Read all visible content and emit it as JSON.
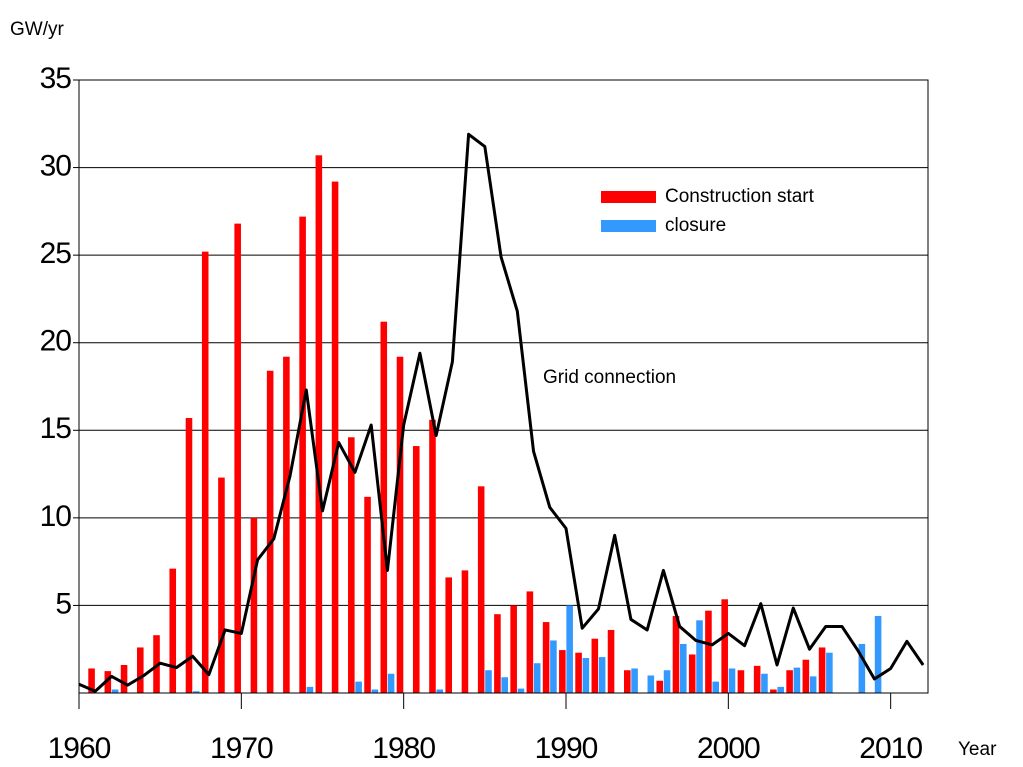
{
  "chart_data": {
    "type": "bar",
    "y_label": "GW/yr",
    "x_label": "Year",
    "x": [
      1960,
      1961,
      1962,
      1963,
      1964,
      1965,
      1966,
      1967,
      1968,
      1969,
      1970,
      1971,
      1972,
      1973,
      1974,
      1975,
      1976,
      1977,
      1978,
      1979,
      1980,
      1981,
      1982,
      1983,
      1984,
      1985,
      1986,
      1987,
      1988,
      1989,
      1990,
      1991,
      1992,
      1993,
      1994,
      1995,
      1996,
      1997,
      1998,
      1999,
      2000,
      2001,
      2002,
      2003,
      2004,
      2005,
      2006,
      2007,
      2008,
      2009,
      2010,
      2011,
      2012
    ],
    "series": [
      {
        "name": "Construction start",
        "color": "#ff0000",
        "type": "bar",
        "values": [
          null,
          1.4,
          1.25,
          1.6,
          2.6,
          3.3,
          7.1,
          15.7,
          25.2,
          12.3,
          26.8,
          10.0,
          18.4,
          19.2,
          27.2,
          30.7,
          29.2,
          14.6,
          11.2,
          21.2,
          19.2,
          14.1,
          15.6,
          6.6,
          7.0,
          11.8,
          4.5,
          5.0,
          5.8,
          4.05,
          2.45,
          2.3,
          3.1,
          3.6,
          1.3,
          null,
          0.7,
          4.4,
          2.2,
          4.7,
          5.35,
          1.3,
          1.55,
          0.2,
          1.3,
          1.9,
          2.6,
          null,
          null,
          null,
          null,
          null,
          null
        ]
      },
      {
        "name": "closure",
        "color": "#3399ff",
        "type": "bar",
        "values": [
          null,
          null,
          0.2,
          null,
          null,
          null,
          null,
          0.1,
          null,
          null,
          null,
          null,
          null,
          null,
          0.35,
          null,
          null,
          0.65,
          0.2,
          1.1,
          null,
          null,
          0.2,
          null,
          null,
          1.3,
          0.9,
          0.25,
          1.7,
          3.0,
          5.0,
          2.0,
          2.05,
          null,
          1.4,
          1.0,
          1.3,
          2.8,
          4.15,
          0.65,
          1.4,
          null,
          1.1,
          0.35,
          1.45,
          0.95,
          2.3,
          null,
          2.8,
          4.4,
          null,
          null,
          null
        ]
      },
      {
        "name": "Grid connection",
        "color": "#000000",
        "type": "line",
        "values": [
          0.5,
          0.1,
          0.95,
          0.45,
          1.0,
          1.7,
          1.45,
          2.1,
          1.05,
          3.6,
          3.4,
          7.6,
          8.8,
          12.4,
          17.3,
          10.4,
          14.3,
          12.6,
          15.3,
          7.0,
          15.3,
          19.4,
          14.7,
          18.9,
          31.9,
          31.2,
          24.9,
          21.8,
          13.8,
          10.6,
          9.4,
          3.7,
          4.8,
          9.0,
          4.2,
          3.6,
          7.0,
          3.8,
          3.0,
          2.75,
          3.4,
          2.7,
          5.1,
          1.6,
          4.85,
          2.5,
          3.8,
          3.8,
          2.4,
          0.8,
          1.4,
          2.95,
          1.6
        ]
      }
    ],
    "xlim": [
      1960,
      2012.3
    ],
    "xticks": [
      1960,
      1970,
      1980,
      1990,
      2000,
      2010
    ],
    "ylim": [
      0,
      35
    ],
    "yticks": [
      5,
      10,
      15,
      20,
      25,
      30,
      35
    ],
    "grid": true
  }
}
